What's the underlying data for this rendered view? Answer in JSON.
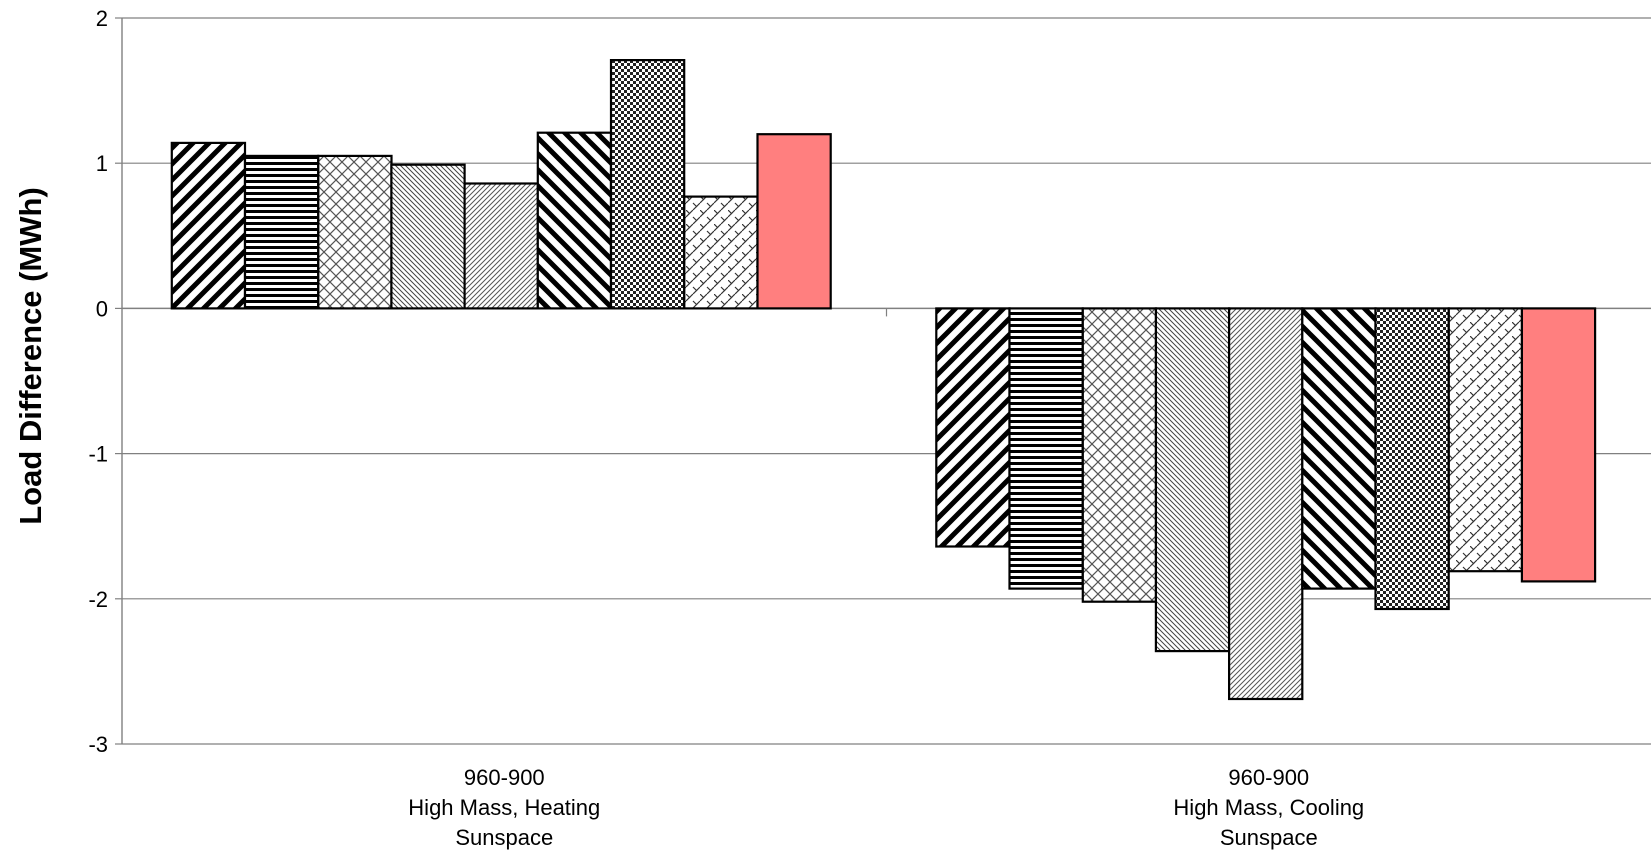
{
  "chart_data": {
    "type": "bar",
    "title": "",
    "xlabel": "",
    "ylabel": "Load Difference (MWh)",
    "ylim": [
      -3,
      2
    ],
    "yticks": [
      "2",
      "1",
      "0",
      "-1",
      "-2",
      "-3"
    ],
    "grid": true,
    "legend": "none",
    "categories": [
      [
        "960-900",
        "High Mass, Heating",
        "Sunspace"
      ],
      [
        "960-900",
        "High Mass, Cooling",
        "Sunspace"
      ]
    ],
    "series": [
      {
        "pattern": "diag-thick-ur",
        "fill": "#ffffff",
        "values": [
          1.14,
          -1.64
        ]
      },
      {
        "pattern": "horizontal-lines",
        "fill": "#ffffff",
        "values": [
          1.05,
          -1.93
        ]
      },
      {
        "pattern": "crosshatch",
        "fill": "#ffffff",
        "values": [
          1.05,
          -2.02
        ]
      },
      {
        "pattern": "diag-fine-dl",
        "fill": "#ffffff",
        "values": [
          0.99,
          -2.36
        ]
      },
      {
        "pattern": "diag-fine-ur",
        "fill": "#ffffff",
        "values": [
          0.86,
          -2.69
        ]
      },
      {
        "pattern": "diag-thick-dl",
        "fill": "#ffffff",
        "values": [
          1.21,
          -1.93
        ]
      },
      {
        "pattern": "checker",
        "fill": "#ffffff",
        "values": [
          1.71,
          -2.07
        ]
      },
      {
        "pattern": "weave",
        "fill": "#ffffff",
        "values": [
          0.77,
          -1.81
        ]
      },
      {
        "pattern": "solid",
        "fill": "#ff7f7f",
        "values": [
          1.2,
          -1.88
        ]
      }
    ]
  }
}
